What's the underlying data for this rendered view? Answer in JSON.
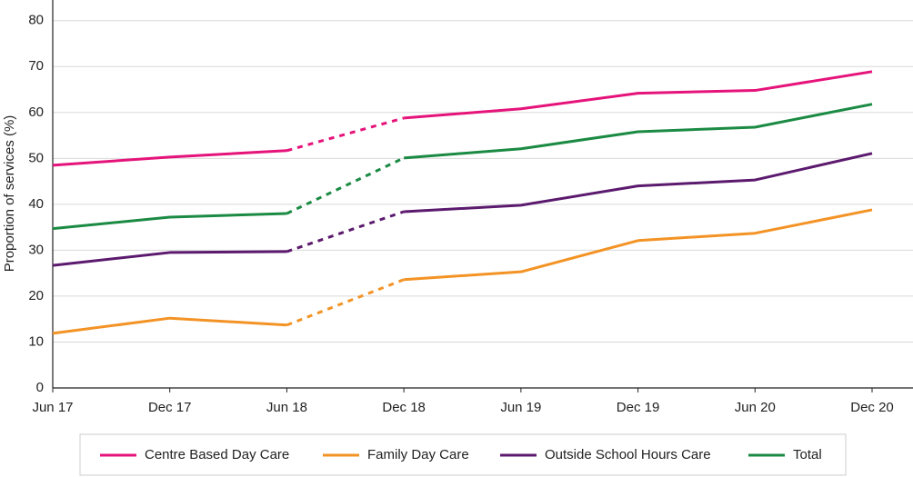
{
  "chart_data": {
    "type": "line",
    "y_label": "Proportion of services (%)",
    "categories": [
      "Jun 17",
      "Dec 17",
      "Jun 18",
      "Dec 18",
      "Jun 19",
      "Dec 19",
      "Jun 20",
      "Dec 20"
    ],
    "series": [
      {
        "name": "Centre Based Day Care",
        "color": "#e5137a",
        "values": [
          48.5,
          50.3,
          51.7,
          58.8,
          60.8,
          64.2,
          64.8,
          68.9
        ]
      },
      {
        "name": "Family Day Care",
        "color": "#f39325",
        "values": [
          11.9,
          15.2,
          13.7,
          23.6,
          25.3,
          32.1,
          33.7,
          38.8
        ]
      },
      {
        "name": "Outside School Hours Care",
        "color": "#5c1a6e",
        "values": [
          26.7,
          29.5,
          29.7,
          38.4,
          39.8,
          44.0,
          45.3,
          51.1
        ]
      },
      {
        "name": "Total",
        "color": "#1b8a43",
        "values": [
          34.7,
          37.2,
          38.0,
          50.1,
          52.1,
          55.8,
          56.8,
          61.8
        ]
      }
    ],
    "dashed_intervals": [
      [
        2,
        3
      ]
    ],
    "ylim": [
      0,
      84.5
    ],
    "yticks": [
      0,
      10,
      20,
      30,
      40,
      50,
      60,
      70,
      80
    ],
    "grid": true,
    "legend": "bottom"
  }
}
